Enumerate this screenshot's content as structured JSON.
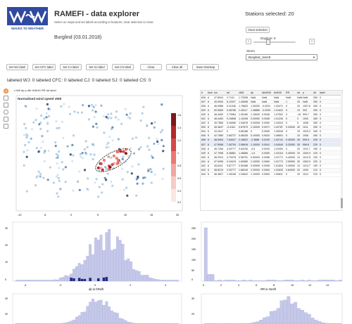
{
  "header": {
    "logo_text": "WAVES TO WEATHER",
    "title": "RAMEFI - data explorer",
    "subtitle": "Select on maps and set labels according to features; clear selection to reset.",
    "event": "Burglind (03.01.2018)",
    "stations": "Stations selected: 20"
  },
  "controls": {
    "clear_selection": "Clear selection",
    "daytime_label": "Daytime: 6",
    "prev": "‹",
    "next": "›",
    "storm_label": "Storm",
    "storm_value": "Burglind_Jan18"
  },
  "buttons": [
    "Set WJ label",
    "Set CFC label",
    "Set CJ label",
    "Set SJ label",
    "Set CS label",
    "Clear",
    "Clear all",
    "Save timestep"
  ],
  "counts": "labeled WJ: 0   labeled CFC: 0   labeled CJ: 0   labeled SJ: 0   labeled CS: 0",
  "col_headers": "v.W8   dp   p   dth   th/th30   RR   dd   label",
  "scatter": {
    "title": "Normalised wind speed vW8",
    "xticks": [
      "-10",
      "-5",
      "0",
      "5",
      "10",
      "15",
      "20"
    ],
    "yticks": [
      "4",
      "2",
      "0",
      "-2",
      "-4",
      "-6"
    ],
    "cbar_ticks": [
      "1.6",
      "1.4",
      "1.2",
      "1",
      "0.8",
      "0.6",
      "0.4",
      "0.2"
    ]
  },
  "table": {
    "headers": [
      "#",
      "time",
      "lon",
      "lat",
      "vW8",
      "dp",
      "dth/th30",
      "th/th30",
      "RR",
      "dd",
      "p",
      "dd",
      "label"
    ],
    "rows": [
      [
        "826",
        "6",
        "47.8044",
        "2.7141",
        "1.73308",
        "NaN",
        "NaN",
        "NaN",
        "NaN",
        "NaN",
        "NaN",
        "260",
        "0"
      ],
      [
        "827",
        "6",
        "49.0994",
        "6.12927",
        "1.40698",
        "NaN",
        "NaN",
        "NaN",
        "1",
        "20",
        "NaN",
        "260",
        "0"
      ],
      [
        "828",
        "6",
        "46.9986",
        "5.11046",
        "1.78833",
        "1.00000",
        "-0.0031",
        "1.03471",
        "0",
        "20",
        "1007.6",
        "260",
        "0"
      ],
      [
        "829",
        "6",
        "50.5089",
        "5.08786",
        "1.28117",
        "1.38886",
        "-0.0039",
        "1.01622",
        "0",
        "10",
        "993",
        "250",
        "0"
      ],
      [
        "830",
        "6",
        "48.4453",
        "2.73964",
        "1.05180",
        "1.15000",
        "0.0046",
        "1.07502",
        "0",
        "-15",
        "999.7",
        "260",
        "0"
      ],
      [
        "831",
        "6",
        "48.4453",
        "9.10898",
        "1.10298",
        "0.00050",
        "0.0055",
        "1.01230",
        "0",
        "0",
        "1000",
        "260",
        "0"
      ],
      [
        "832",
        "6",
        "45.7865",
        "5.16956",
        "1.04678",
        "0.00008",
        "0.0050",
        "1.04324",
        "0",
        "0",
        "1008",
        "260",
        "0"
      ],
      [
        "833",
        "6",
        "45.3647",
        "-0.4161",
        "0.87679",
        "2.10000",
        "0.0071",
        "1.02787",
        "0.20000",
        "40",
        "1011",
        "250",
        "0"
      ],
      [
        "834",
        "6",
        "43.1617",
        "0",
        "0.66188",
        "0",
        "0.0006",
        "1.00045",
        "0",
        "15",
        "1023.2",
        "260",
        "0"
      ],
      [
        "835",
        "6",
        "42.7580",
        "2.65727",
        "0.58435",
        "0.10000",
        "0.0034",
        "1.06601",
        "0",
        "10",
        "1006",
        "260",
        "0"
      ],
      [
        "836",
        "6",
        "48.5494",
        "7.64027",
        "2.18622",
        "-2.3888",
        "0.0100",
        "1.02741",
        "0.40000",
        "30",
        "990.5",
        "240",
        "0"
      ],
      [
        "837",
        "6",
        "47.5598",
        "7.40704",
        "2.06616",
        "1.10000",
        "0.0041",
        "1.04040",
        "0.20000",
        "30",
        "996.8",
        "220",
        "0"
      ],
      [
        "838",
        "6",
        "45.7256",
        "4.93777",
        "0.84235",
        "-0.5",
        "0.0033",
        "1.01054",
        "0",
        "20",
        "1011.7",
        "180",
        "0"
      ],
      [
        "839",
        "6",
        "47.7998",
        "6.36881",
        "1.46666",
        "-1.6",
        "0.0050",
        "1.03118",
        "0.40000",
        "20",
        "1000.9",
        "220",
        "0"
      ],
      [
        "840",
        "6",
        "46.2914",
        "4.79478",
        "0.58751",
        "0.60000",
        "0.0058",
        "1.01771",
        "0.40000",
        "10",
        "1013.5",
        "190",
        "0"
      ],
      [
        "841",
        "6",
        "47.9495",
        "0.19419",
        "1.62685",
        "2.10000",
        "0.0060",
        "1.01772",
        "2.59990",
        "30",
        "1000.9",
        "220",
        "0"
      ],
      [
        "842",
        "6",
        "45.6411",
        "5.87777",
        "0.50488",
        "0.09999",
        "0.0008",
        "1.01604",
        "0.40000",
        "10",
        "1014.7",
        "190",
        "0"
      ],
      [
        "843",
        "6",
        "48.8219",
        "2.30777",
        "1.68249",
        "2.20000",
        "0.0054",
        "1.02633",
        "0.60000",
        "20",
        "1000",
        "210",
        "0"
      ],
      [
        "844",
        "6",
        "46.3827",
        "1.18198",
        "1.04642",
        "1.10000",
        "0.0050",
        "1.00811",
        "0",
        "10",
        "1012",
        "210",
        "0"
      ]
    ]
  },
  "hist1": {
    "xlabel": "dp in hPa/h",
    "xticks": [
      "-4",
      "-2",
      "0",
      "2",
      "4"
    ],
    "yticks": [
      "30",
      "20",
      "10",
      "0"
    ]
  },
  "hist2": {
    "xlabel": "RR in mm/h",
    "xticks": [
      "0",
      "2",
      "4",
      "6",
      "8",
      "10",
      "12",
      "14"
    ],
    "yticks": [
      "250",
      "200",
      "150",
      "100",
      "50",
      "0"
    ]
  },
  "hist3": {
    "yticks": [
      "30",
      "20"
    ]
  },
  "hist4": {
    "yticks": [
      "30",
      "20"
    ]
  },
  "colors": {
    "accent": "#2f4aa0",
    "scatter_light": "#a8c8e0",
    "scatter_dark": "#1d3f73",
    "red": "#c0392b",
    "hist": "#c5c8e8",
    "hist_edge": "#9aa0d6",
    "hist_sel": "#1f2b80"
  }
}
